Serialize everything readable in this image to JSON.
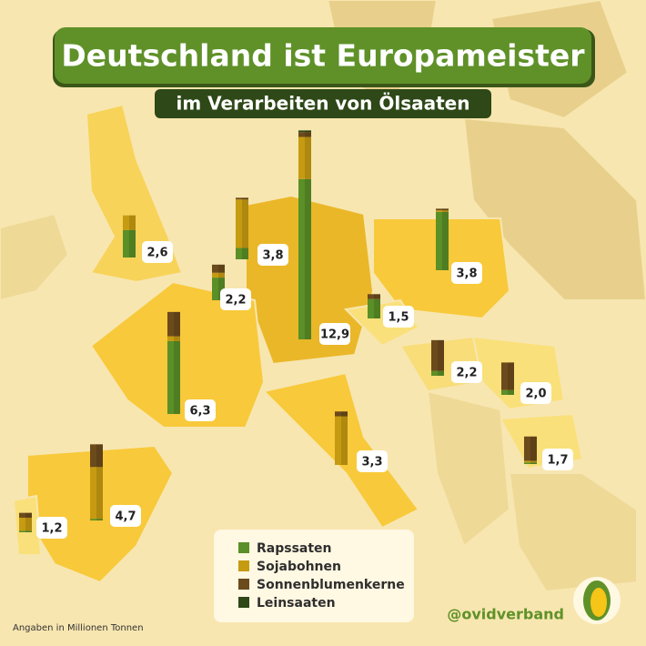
{
  "chart_data": {
    "type": "bar",
    "title": "Deutschland ist Europameister",
    "subtitle": "im Verarbeiten von Ölsaaten",
    "series": [
      {
        "name": "Rapssaten",
        "color": "#5b8f27",
        "values": [
          1.7,
          0.7,
          1.4,
          4.5,
          9.9,
          3.6,
          1.2,
          0.3,
          0.3,
          0.1,
          0,
          0.1,
          0.1
        ]
      },
      {
        "name": "Sojabohnen",
        "color": "#c69b12",
        "values": [
          0.9,
          3.0,
          0.3,
          0.3,
          2.6,
          0.1,
          0,
          0,
          0,
          0.1,
          3.0,
          3.2,
          0.8
        ]
      },
      {
        "name": "Sonnenblumenkerne",
        "color": "#6b4a1c",
        "values": [
          0,
          0.1,
          0.5,
          1.5,
          0.3,
          0.1,
          0.3,
          1.9,
          1.7,
          1.5,
          0.3,
          1.4,
          0.3
        ]
      },
      {
        "name": "Leinsaaten",
        "color": "#2e4818",
        "values": [
          0,
          0,
          0,
          0,
          0.1,
          0,
          0,
          0,
          0,
          0,
          0,
          0,
          0
        ]
      }
    ],
    "totals": {
      "values": [
        2.6,
        3.8,
        2.2,
        6.3,
        12.9,
        3.8,
        1.5,
        2.2,
        2.0,
        1.7,
        3.3,
        4.7,
        1.2
      ],
      "value_labels": [
        "2,6",
        "3,8",
        "2,2",
        "6,3",
        "12,9",
        "3,8",
        "1,5",
        "2,2",
        "2,0",
        "1,7",
        "3,3",
        "4,7",
        "1,2"
      ]
    },
    "note": "Angaben in Millionen Tonnen",
    "source": "@ovidverband"
  }
}
